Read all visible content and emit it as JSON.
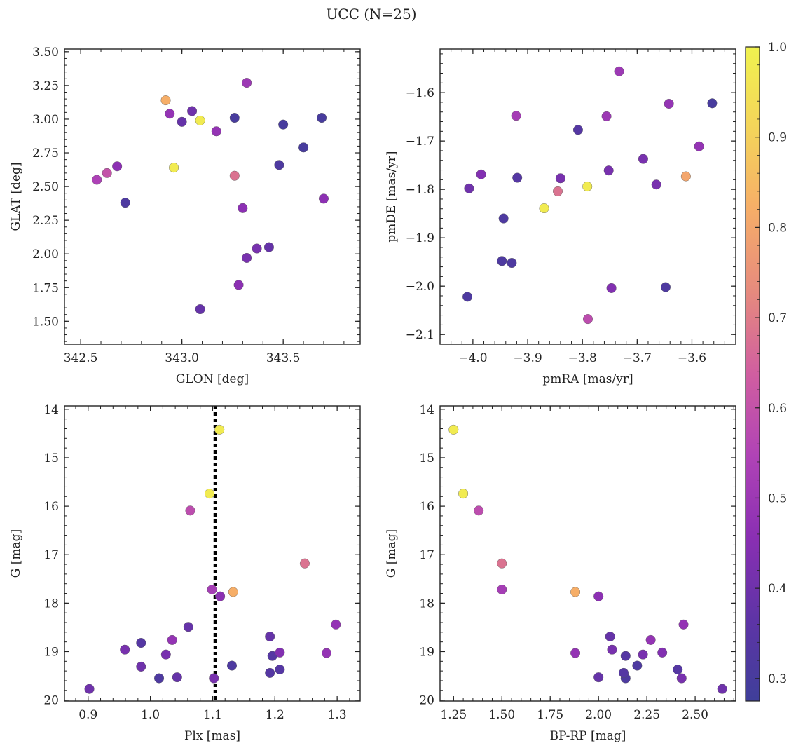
{
  "figure": {
    "title": "UCC (N=25)"
  },
  "colorbar": {
    "range": [
      0.275,
      1.0
    ],
    "ticks": [
      0.3,
      0.4,
      0.5,
      0.6,
      0.7,
      0.8,
      0.9,
      1.0
    ],
    "tick_labels": [
      "0.3",
      "0.4",
      "0.5",
      "0.6",
      "0.7",
      "0.8",
      "0.9",
      "1.0"
    ],
    "colormap": "plasma",
    "colormap_stops": [
      "#3f3f9a",
      "#5e34a6",
      "#8a2fb3",
      "#b043b6",
      "#d05ea0",
      "#e68a7e",
      "#f6ad68",
      "#f4d45a",
      "#f0f24f"
    ]
  },
  "chart_data": [
    {
      "type": "scatter",
      "id": "sky",
      "xlabel": "GLON [deg]",
      "ylabel": "GLAT [deg]",
      "xlim": [
        342.42,
        343.88
      ],
      "ylim": [
        1.33,
        3.52
      ],
      "x_ticks": [
        342.5,
        343.0,
        343.5
      ],
      "x_tick_labels": [
        "342.5",
        "343.0",
        "343.5"
      ],
      "y_ticks": [
        1.5,
        1.75,
        2.0,
        2.25,
        2.5,
        2.75,
        3.0,
        3.25,
        3.5
      ],
      "y_tick_labels": [
        "1.50",
        "1.75",
        "2.00",
        "2.25",
        "2.50",
        "2.75",
        "3.00",
        "3.25",
        "3.50"
      ],
      "points": [
        {
          "x": 342.92,
          "y": 3.14,
          "c": 0.82
        },
        {
          "x": 342.94,
          "y": 3.04,
          "c": 0.48
        },
        {
          "x": 343.05,
          "y": 3.06,
          "c": 0.4
        },
        {
          "x": 343.0,
          "y": 2.98,
          "c": 0.38
        },
        {
          "x": 343.09,
          "y": 2.99,
          "c": 0.98
        },
        {
          "x": 343.17,
          "y": 2.91,
          "c": 0.48
        },
        {
          "x": 343.26,
          "y": 3.01,
          "c": 0.3
        },
        {
          "x": 343.32,
          "y": 3.27,
          "c": 0.5
        },
        {
          "x": 343.5,
          "y": 2.96,
          "c": 0.3
        },
        {
          "x": 343.69,
          "y": 3.01,
          "c": 0.3
        },
        {
          "x": 343.6,
          "y": 2.79,
          "c": 0.3
        },
        {
          "x": 343.48,
          "y": 2.66,
          "c": 0.32
        },
        {
          "x": 343.7,
          "y": 2.41,
          "c": 0.46
        },
        {
          "x": 342.96,
          "y": 2.64,
          "c": 0.98
        },
        {
          "x": 343.26,
          "y": 2.58,
          "c": 0.68
        },
        {
          "x": 342.68,
          "y": 2.65,
          "c": 0.46
        },
        {
          "x": 342.63,
          "y": 2.6,
          "c": 0.6
        },
        {
          "x": 342.58,
          "y": 2.55,
          "c": 0.54
        },
        {
          "x": 342.72,
          "y": 2.38,
          "c": 0.32
        },
        {
          "x": 343.3,
          "y": 2.34,
          "c": 0.46
        },
        {
          "x": 343.37,
          "y": 2.04,
          "c": 0.42
        },
        {
          "x": 343.43,
          "y": 2.05,
          "c": 0.38
        },
        {
          "x": 343.32,
          "y": 1.97,
          "c": 0.42
        },
        {
          "x": 343.28,
          "y": 1.77,
          "c": 0.46
        },
        {
          "x": 343.09,
          "y": 1.59,
          "c": 0.38
        }
      ]
    },
    {
      "type": "scatter",
      "id": "pm",
      "xlabel": "pmRA [mas/yr]",
      "ylabel": "pmDE [mas/yr]",
      "xlim": [
        -4.06,
        -3.52
      ],
      "ylim": [
        -2.12,
        -1.51
      ],
      "x_ticks": [
        -4.0,
        -3.9,
        -3.8,
        -3.7,
        -3.6
      ],
      "x_tick_labels": [
        "−4.0",
        "−3.9",
        "−3.8",
        "−3.7",
        "−3.6"
      ],
      "y_ticks": [
        -2.1,
        -2.0,
        -1.9,
        -1.8,
        -1.7,
        -1.6
      ],
      "y_tick_labels": [
        "−2.1",
        "−2.0",
        "−1.9",
        "−1.8",
        "−1.7",
        "−1.6"
      ],
      "points": [
        {
          "x": -3.733,
          "y": -1.556,
          "c": 0.5
        },
        {
          "x": -3.563,
          "y": -1.622,
          "c": 0.3
        },
        {
          "x": -3.642,
          "y": -1.623,
          "c": 0.48
        },
        {
          "x": -3.756,
          "y": -1.649,
          "c": 0.5
        },
        {
          "x": -3.921,
          "y": -1.648,
          "c": 0.52
        },
        {
          "x": -3.808,
          "y": -1.677,
          "c": 0.34
        },
        {
          "x": -3.587,
          "y": -1.711,
          "c": 0.48
        },
        {
          "x": -3.689,
          "y": -1.737,
          "c": 0.42
        },
        {
          "x": -3.985,
          "y": -1.769,
          "c": 0.44
        },
        {
          "x": -3.611,
          "y": -1.773,
          "c": 0.8
        },
        {
          "x": -3.919,
          "y": -1.776,
          "c": 0.34
        },
        {
          "x": -3.84,
          "y": -1.777,
          "c": 0.42
        },
        {
          "x": -3.752,
          "y": -1.761,
          "c": 0.42
        },
        {
          "x": -3.665,
          "y": -1.79,
          "c": 0.42
        },
        {
          "x": -3.791,
          "y": -1.794,
          "c": 0.98
        },
        {
          "x": -4.007,
          "y": -1.798,
          "c": 0.4
        },
        {
          "x": -3.845,
          "y": -1.804,
          "c": 0.68
        },
        {
          "x": -3.87,
          "y": -1.839,
          "c": 0.98
        },
        {
          "x": -3.944,
          "y": -1.86,
          "c": 0.32
        },
        {
          "x": -3.947,
          "y": -1.948,
          "c": 0.32
        },
        {
          "x": -3.929,
          "y": -1.952,
          "c": 0.32
        },
        {
          "x": -3.747,
          "y": -2.004,
          "c": 0.44
        },
        {
          "x": -3.648,
          "y": -2.002,
          "c": 0.32
        },
        {
          "x": -4.01,
          "y": -2.022,
          "c": 0.32
        },
        {
          "x": -3.79,
          "y": -2.068,
          "c": 0.58
        }
      ]
    },
    {
      "type": "scatter",
      "id": "plx",
      "xlabel": "Plx [mas]",
      "ylabel": "G [mag]",
      "xlim": [
        0.862,
        1.337
      ],
      "ylim": [
        20.02,
        13.93
      ],
      "x_ticks": [
        0.9,
        1.0,
        1.1,
        1.2,
        1.3
      ],
      "x_tick_labels": [
        "0.9",
        "1.0",
        "1.1",
        "1.2",
        "1.3"
      ],
      "y_ticks": [
        14,
        15,
        16,
        17,
        18,
        19,
        20
      ],
      "y_tick_labels": [
        "14",
        "15",
        "16",
        "17",
        "18",
        "19",
        "20"
      ],
      "vline": 1.104,
      "points": [
        {
          "x": 1.111,
          "y": 14.42,
          "c": 0.98
        },
        {
          "x": 1.095,
          "y": 15.74,
          "c": 0.98
        },
        {
          "x": 1.064,
          "y": 16.09,
          "c": 0.58
        },
        {
          "x": 1.248,
          "y": 17.18,
          "c": 0.68
        },
        {
          "x": 1.099,
          "y": 17.72,
          "c": 0.52
        },
        {
          "x": 1.133,
          "y": 17.77,
          "c": 0.82
        },
        {
          "x": 1.112,
          "y": 17.86,
          "c": 0.46
        },
        {
          "x": 1.298,
          "y": 18.44,
          "c": 0.48
        },
        {
          "x": 1.061,
          "y": 18.49,
          "c": 0.38
        },
        {
          "x": 1.192,
          "y": 18.69,
          "c": 0.38
        },
        {
          "x": 0.985,
          "y": 18.82,
          "c": 0.34
        },
        {
          "x": 1.035,
          "y": 18.76,
          "c": 0.48
        },
        {
          "x": 0.959,
          "y": 18.96,
          "c": 0.42
        },
        {
          "x": 1.025,
          "y": 19.06,
          "c": 0.42
        },
        {
          "x": 1.208,
          "y": 19.02,
          "c": 0.44
        },
        {
          "x": 1.283,
          "y": 19.03,
          "c": 0.48
        },
        {
          "x": 1.196,
          "y": 19.09,
          "c": 0.34
        },
        {
          "x": 0.985,
          "y": 19.31,
          "c": 0.4
        },
        {
          "x": 1.131,
          "y": 19.29,
          "c": 0.32
        },
        {
          "x": 1.208,
          "y": 19.37,
          "c": 0.34
        },
        {
          "x": 1.192,
          "y": 19.44,
          "c": 0.34
        },
        {
          "x": 1.014,
          "y": 19.55,
          "c": 0.32
        },
        {
          "x": 1.043,
          "y": 19.53,
          "c": 0.38
        },
        {
          "x": 1.102,
          "y": 19.55,
          "c": 0.42
        },
        {
          "x": 0.902,
          "y": 19.77,
          "c": 0.4
        }
      ]
    },
    {
      "type": "scatter",
      "id": "cmd",
      "xlabel": "BP-RP [mag]",
      "ylabel": "G [mag]",
      "xlim": [
        1.18,
        2.71
      ],
      "ylim": [
        20.02,
        13.93
      ],
      "x_ticks": [
        1.25,
        1.5,
        1.75,
        2.0,
        2.25,
        2.5
      ],
      "x_tick_labels": [
        "1.25",
        "1.50",
        "1.75",
        "2.00",
        "2.25",
        "2.50"
      ],
      "y_ticks": [
        14,
        15,
        16,
        17,
        18,
        19,
        20
      ],
      "y_tick_labels": [
        "14",
        "15",
        "16",
        "17",
        "18",
        "19",
        "20"
      ],
      "points": [
        {
          "x": 1.25,
          "y": 14.42,
          "c": 0.98
        },
        {
          "x": 1.3,
          "y": 15.74,
          "c": 0.98
        },
        {
          "x": 1.38,
          "y": 16.09,
          "c": 0.58
        },
        {
          "x": 1.5,
          "y": 17.18,
          "c": 0.68
        },
        {
          "x": 1.5,
          "y": 17.72,
          "c": 0.52
        },
        {
          "x": 1.88,
          "y": 17.77,
          "c": 0.82
        },
        {
          "x": 2.0,
          "y": 17.86,
          "c": 0.46
        },
        {
          "x": 2.44,
          "y": 18.44,
          "c": 0.48
        },
        {
          "x": 2.06,
          "y": 18.69,
          "c": 0.38
        },
        {
          "x": 2.27,
          "y": 18.76,
          "c": 0.48
        },
        {
          "x": 2.07,
          "y": 18.96,
          "c": 0.42
        },
        {
          "x": 1.88,
          "y": 19.03,
          "c": 0.48
        },
        {
          "x": 2.33,
          "y": 19.02,
          "c": 0.44
        },
        {
          "x": 2.23,
          "y": 19.06,
          "c": 0.42
        },
        {
          "x": 2.14,
          "y": 19.09,
          "c": 0.34
        },
        {
          "x": 2.2,
          "y": 19.29,
          "c": 0.32
        },
        {
          "x": 2.41,
          "y": 19.37,
          "c": 0.34
        },
        {
          "x": 2.13,
          "y": 19.44,
          "c": 0.34
        },
        {
          "x": 2.0,
          "y": 19.53,
          "c": 0.38
        },
        {
          "x": 2.14,
          "y": 19.55,
          "c": 0.32
        },
        {
          "x": 2.43,
          "y": 19.55,
          "c": 0.42
        },
        {
          "x": 2.64,
          "y": 19.77,
          "c": 0.4
        }
      ]
    }
  ]
}
